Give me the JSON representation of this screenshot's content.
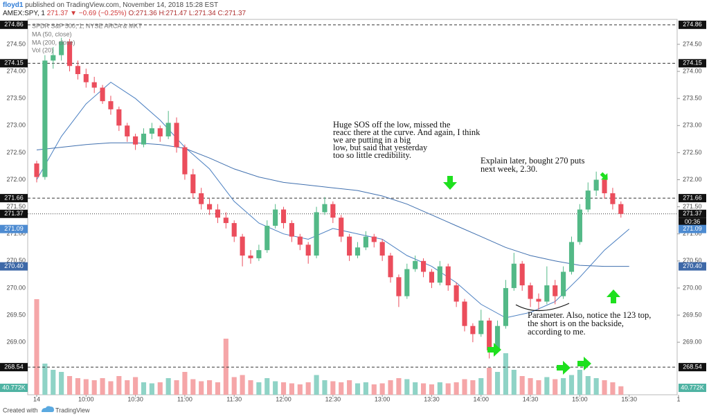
{
  "header": {
    "publisher": "floyd1",
    "published": "published on TradingView.com, November 14, 2018 15:28 EST",
    "symbol": "AMEX:SPY, 1",
    "last": "271.37",
    "change": "▼ −0.69 (−0.25%)",
    "ohlc": "O:271.36 H:271.47 L:271.34 C:271.37"
  },
  "legend": [
    "SPDR S&P 500, 1, NYSE ARCA & MKT",
    "MA (50, close)",
    "MA (200, close)",
    "Vol (20)"
  ],
  "chart_data": {
    "type": "candlestick",
    "ylim": [
      268.03,
      274.96
    ],
    "yticks": [
      {
        "value": 274.5,
        "label": "274.50"
      },
      {
        "value": 274,
        "label": "274.00"
      },
      {
        "value": 273.5,
        "label": "273.50"
      },
      {
        "value": 273,
        "label": "273.00"
      },
      {
        "value": 272.5,
        "label": "272.50"
      },
      {
        "value": 272,
        "label": "272.00"
      },
      {
        "value": 271.5,
        "label": "271.50"
      },
      {
        "value": 271,
        "label": "271.00"
      },
      {
        "value": 270.5,
        "label": "270.50"
      },
      {
        "value": 270,
        "label": "270.00"
      },
      {
        "value": 269.5,
        "label": "269.50"
      },
      {
        "value": 269,
        "label": "269.00"
      }
    ],
    "xlim": [
      "09:30",
      "16:00"
    ],
    "xticks": [
      {
        "value": "09:30",
        "label": "14"
      },
      "10:00",
      "10:30",
      "11:00",
      "11:30",
      "12:00",
      "12:30",
      "13:00",
      "13:30",
      "14:00",
      "14:30",
      "15:00",
      "15:30",
      {
        "value": "16:00",
        "label": "1"
      }
    ],
    "up_color": "#53b987",
    "down_color": "#eb4d5c",
    "volume_up_color": "#8fd3c6",
    "volume_down_color": "#f5a6a8",
    "candles": {
      "x": [
        "09:30",
        "09:35",
        "09:40",
        "09:45",
        "09:50",
        "09:55",
        "10:00",
        "10:05",
        "10:10",
        "10:15",
        "10:20",
        "10:25",
        "10:30",
        "10:35",
        "10:40",
        "10:45",
        "10:50",
        "10:55",
        "11:00",
        "11:05",
        "11:10",
        "11:15",
        "11:20",
        "11:25",
        "11:30",
        "11:35",
        "11:40",
        "11:45",
        "11:50",
        "11:55",
        "12:00",
        "12:05",
        "12:10",
        "12:15",
        "12:20",
        "12:25",
        "12:30",
        "12:35",
        "12:40",
        "12:45",
        "12:50",
        "12:55",
        "13:00",
        "13:05",
        "13:10",
        "13:15",
        "13:20",
        "13:25",
        "13:30",
        "13:35",
        "13:40",
        "13:45",
        "13:50",
        "13:55",
        "14:00",
        "14:05",
        "14:10",
        "14:15",
        "14:20",
        "14:25",
        "14:30",
        "14:35",
        "14:40",
        "14:45",
        "14:50",
        "14:55",
        "15:00",
        "15:05",
        "15:10",
        "15:15",
        "15:20",
        "15:25"
      ],
      "open": [
        272.3,
        272.05,
        274.2,
        274.3,
        274.55,
        274.1,
        273.95,
        273.8,
        273.7,
        273.45,
        273.3,
        273.0,
        272.8,
        272.65,
        272.85,
        272.95,
        272.8,
        273.05,
        272.6,
        272.1,
        271.75,
        271.55,
        271.45,
        271.3,
        271.2,
        270.95,
        270.6,
        270.55,
        270.7,
        271.15,
        271.45,
        271.2,
        270.95,
        270.8,
        270.6,
        271.4,
        271.55,
        271.3,
        270.95,
        270.6,
        270.75,
        270.95,
        270.85,
        270.6,
        270.2,
        269.85,
        270.35,
        270.5,
        270.3,
        270.1,
        270.4,
        270.05,
        269.75,
        269.3,
        269.15,
        269.4,
        268.85,
        269.3,
        270.0,
        270.45,
        270.05,
        269.8,
        269.75,
        270.05,
        269.85,
        270.3,
        270.85,
        271.45,
        271.8,
        272.0,
        271.75,
        271.55
      ],
      "high": [
        272.35,
        274.3,
        274.45,
        274.62,
        274.6,
        274.2,
        274.05,
        273.9,
        273.75,
        273.55,
        273.35,
        273.05,
        272.85,
        272.95,
        273.05,
        273.0,
        273.27,
        273.15,
        272.65,
        272.2,
        271.85,
        271.65,
        271.55,
        271.4,
        271.25,
        271.0,
        270.7,
        270.8,
        271.25,
        271.55,
        271.5,
        271.25,
        271.0,
        270.85,
        271.5,
        271.68,
        271.6,
        271.35,
        271.0,
        270.85,
        271.05,
        271.0,
        270.9,
        270.65,
        270.25,
        270.45,
        270.6,
        270.55,
        270.35,
        270.5,
        270.45,
        270.1,
        269.8,
        269.35,
        269.6,
        269.45,
        269.4,
        270.15,
        270.65,
        270.5,
        270.1,
        269.9,
        270.4,
        270.15,
        270.4,
        270.95,
        271.55,
        271.95,
        272.15,
        272.05,
        271.85,
        271.6
      ],
      "low": [
        271.95,
        272.0,
        274.05,
        274.2,
        274.0,
        273.85,
        273.7,
        273.6,
        273.4,
        273.2,
        272.9,
        272.7,
        272.55,
        272.6,
        272.75,
        272.7,
        272.75,
        272.5,
        272.0,
        271.65,
        271.45,
        271.35,
        271.2,
        271.1,
        270.85,
        270.4,
        270.45,
        270.5,
        270.65,
        271.1,
        271.1,
        270.85,
        270.7,
        270.45,
        270.55,
        271.35,
        271.2,
        270.85,
        270.5,
        270.55,
        270.7,
        270.75,
        270.5,
        270.1,
        269.65,
        269.8,
        270.3,
        270.2,
        270.0,
        270.05,
        269.95,
        269.65,
        269.2,
        269.0,
        269.1,
        268.7,
        268.8,
        269.25,
        269.95,
        269.95,
        269.65,
        269.6,
        269.7,
        269.7,
        269.8,
        270.25,
        270.8,
        271.4,
        271.7,
        271.65,
        271.45,
        271.3
      ],
      "close": [
        272.05,
        274.2,
        274.3,
        274.55,
        274.1,
        273.95,
        273.8,
        273.7,
        273.45,
        273.3,
        273.0,
        272.8,
        272.65,
        272.85,
        272.95,
        272.8,
        273.05,
        272.6,
        272.1,
        271.75,
        271.55,
        271.45,
        271.3,
        271.2,
        270.95,
        270.6,
        270.55,
        270.7,
        271.15,
        271.45,
        271.2,
        270.95,
        270.8,
        270.6,
        271.4,
        271.55,
        271.3,
        270.95,
        270.6,
        270.75,
        270.95,
        270.85,
        270.6,
        270.2,
        269.85,
        270.35,
        270.5,
        270.3,
        270.1,
        270.4,
        270.05,
        269.75,
        269.3,
        269.15,
        269.4,
        268.85,
        269.3,
        270.0,
        270.45,
        270.05,
        269.8,
        269.75,
        270.05,
        269.85,
        270.3,
        270.85,
        271.45,
        271.8,
        272.0,
        271.75,
        271.55,
        271.37
      ],
      "volume": [
        460000,
        150000,
        120000,
        110000,
        90000,
        80000,
        75000,
        70000,
        80000,
        65000,
        90000,
        70000,
        85000,
        60000,
        55000,
        60000,
        80000,
        70000,
        110000,
        75000,
        65000,
        70000,
        60000,
        270000,
        85000,
        95000,
        70000,
        60000,
        80000,
        65000,
        60000,
        55000,
        50000,
        60000,
        95000,
        70000,
        65000,
        60000,
        70000,
        55000,
        60000,
        50000,
        55000,
        70000,
        80000,
        75000,
        60000,
        55000,
        50000,
        60000,
        55000,
        60000,
        75000,
        70000,
        80000,
        130000,
        110000,
        200000,
        120000,
        90000,
        80000,
        70000,
        85000,
        75000,
        80000,
        95000,
        120000,
        90000,
        80000,
        70000,
        60000,
        40772
      ]
    },
    "volume_ylim": [
      0,
      500000
    ],
    "volume_last": {
      "value": 40772,
      "label": "40.772K"
    },
    "series": [
      {
        "name": "MA (50, close)",
        "color": "#4a7fc1",
        "x": [
          "09:30",
          "09:45",
          "10:00",
          "10:15",
          "10:30",
          "10:45",
          "11:00",
          "11:15",
          "11:30",
          "11:45",
          "12:00",
          "12:15",
          "12:30",
          "12:45",
          "13:00",
          "13:15",
          "13:30",
          "13:45",
          "14:00",
          "14:15",
          "14:30",
          "14:45",
          "15:00",
          "15:15",
          "15:30"
        ],
        "values": [
          272.0,
          272.8,
          273.4,
          273.8,
          273.5,
          273.1,
          272.6,
          272.2,
          271.6,
          271.2,
          271.0,
          270.9,
          271.1,
          271.0,
          270.9,
          270.6,
          270.4,
          270.1,
          269.7,
          269.45,
          269.55,
          269.75,
          270.2,
          270.7,
          271.09
        ],
        "last": {
          "value": 271.09,
          "label": "271.09"
        },
        "label_color": "#4d8bd1"
      },
      {
        "name": "MA (200, close)",
        "color": "#3f6fae",
        "x": [
          "09:30",
          "09:45",
          "10:00",
          "10:15",
          "10:30",
          "10:45",
          "11:00",
          "11:15",
          "11:30",
          "11:45",
          "12:00",
          "12:15",
          "12:30",
          "12:45",
          "13:00",
          "13:15",
          "13:30",
          "13:45",
          "14:00",
          "14:15",
          "14:30",
          "14:45",
          "15:00",
          "15:15",
          "15:30"
        ],
        "values": [
          272.55,
          272.6,
          272.65,
          272.68,
          272.68,
          272.65,
          272.58,
          272.4,
          272.2,
          272.05,
          271.95,
          271.9,
          271.85,
          271.8,
          271.7,
          271.55,
          271.35,
          271.15,
          270.95,
          270.75,
          270.6,
          270.5,
          270.42,
          270.4,
          270.4
        ],
        "last": {
          "value": 270.4,
          "label": "270.40"
        },
        "label_color": "#3e69a8"
      }
    ],
    "levels": [
      274.86,
      274.15,
      271.66,
      268.54
    ],
    "last_price": 271.37,
    "countdown": "00:36",
    "annotations": [
      [
        "Huge SOS off the low, missed the",
        "reacc there at the curve. And again, I think",
        "we are putting in a big",
        "low, but said that yesterday",
        "too so little credibility."
      ],
      [
        "Explain later, bought 270 puts",
        "next week, 2.30."
      ],
      [
        "Parameter. Also, notice the 123 top,",
        "the short is on the backside,",
        "according to me."
      ]
    ]
  },
  "footer": {
    "created": "Created with",
    "brand": "TradingView"
  }
}
